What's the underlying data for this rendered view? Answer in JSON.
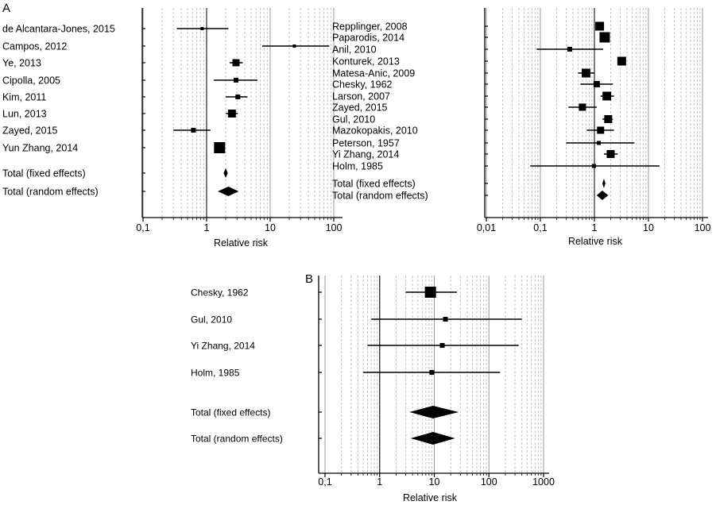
{
  "figure": {
    "panel_a_label": "A",
    "panel_b_label": "B"
  },
  "chart_data": [
    {
      "id": "A-left",
      "type": "forest",
      "panel": "A",
      "xlabel": "Relative risk",
      "xscale": "log",
      "xlim": [
        0.1,
        100
      ],
      "xticks": [
        0.1,
        1,
        10,
        100
      ],
      "xtick_labels": [
        "0,1",
        "1",
        "10",
        "100"
      ],
      "reference_line": 1,
      "grid": true,
      "studies": [
        {
          "label": "de Alcantara-Jones, 2015",
          "rr": 0.85,
          "lo": 0.34,
          "hi": 2.2,
          "weight": 4
        },
        {
          "label": "Campos, 2012",
          "rr": 24,
          "lo": 7.5,
          "hi": 85,
          "weight": 4
        },
        {
          "label": "Ye, 2013",
          "rr": 2.9,
          "lo": 2.3,
          "hi": 3.7,
          "weight": 9
        },
        {
          "label": "Cipolla, 2005",
          "rr": 2.9,
          "lo": 1.3,
          "hi": 6.3,
          "weight": 6
        },
        {
          "label": "Kim, 2011",
          "rr": 3.1,
          "lo": 2.0,
          "hi": 4.4,
          "weight": 6
        },
        {
          "label": "Lun, 2013",
          "rr": 2.5,
          "lo": 2.0,
          "hi": 3.1,
          "weight": 10
        },
        {
          "label": "Zayed, 2015",
          "rr": 0.62,
          "lo": 0.3,
          "hi": 1.15,
          "weight": 6
        },
        {
          "label": "Yun Zhang, 2014",
          "rr": 1.6,
          "lo": 1.4,
          "hi": 1.9,
          "weight": 14
        }
      ],
      "totals": [
        {
          "label": "Total (fixed effects)",
          "rr": 2.0,
          "lo": 1.85,
          "hi": 2.15
        },
        {
          "label": "Total (random effects)",
          "rr": 2.2,
          "lo": 1.5,
          "hi": 3.2
        }
      ]
    },
    {
      "id": "A-right",
      "type": "forest",
      "panel": "A",
      "xlabel": "Relative risk",
      "xscale": "log",
      "xlim": [
        0.01,
        100
      ],
      "xticks": [
        0.01,
        0.1,
        1,
        10,
        100
      ],
      "xtick_labels": [
        "0,01",
        "0,1",
        "1",
        "10",
        "100"
      ],
      "reference_line": 1,
      "grid": true,
      "studies": [
        {
          "label": "Repplinger, 2008",
          "rr": 1.25,
          "lo": 1.1,
          "hi": 1.45,
          "weight": 11
        },
        {
          "label": "Paparodis, 2014",
          "rr": 1.55,
          "lo": 1.35,
          "hi": 1.8,
          "weight": 13
        },
        {
          "label": "Anil, 2010",
          "rr": 0.35,
          "lo": 0.085,
          "hi": 1.45,
          "weight": 6
        },
        {
          "label": "Konturek, 2013",
          "rr": 3.2,
          "lo": 2.7,
          "hi": 3.7,
          "weight": 11
        },
        {
          "label": "Matesa-Anic, 2009",
          "rr": 0.7,
          "lo": 0.5,
          "hi": 1.0,
          "weight": 11
        },
        {
          "label": "Chesky, 1962",
          "rr": 1.1,
          "lo": 0.55,
          "hi": 2.2,
          "weight": 8
        },
        {
          "label": "Larson, 2007",
          "rr": 1.7,
          "lo": 1.3,
          "hi": 2.3,
          "weight": 11
        },
        {
          "label": "Zayed, 2015",
          "rr": 0.6,
          "lo": 0.33,
          "hi": 1.1,
          "weight": 9
        },
        {
          "label": "Gul, 2010",
          "rr": 1.8,
          "lo": 1.4,
          "hi": 2.2,
          "weight": 10
        },
        {
          "label": "Mazokopakis, 2010",
          "rr": 1.3,
          "lo": 0.72,
          "hi": 2.3,
          "weight": 9
        },
        {
          "label": "Peterson, 1957",
          "rr": 1.2,
          "lo": 0.3,
          "hi": 5.5,
          "weight": 5
        },
        {
          "label": "Yi Zhang, 2014",
          "rr": 2.0,
          "lo": 1.5,
          "hi": 2.7,
          "weight": 10
        },
        {
          "label": "Holm, 1985",
          "rr": 0.98,
          "lo": 0.065,
          "hi": 16,
          "weight": 5
        }
      ],
      "totals": [
        {
          "label": "Total (fixed effects)",
          "rr": 1.5,
          "lo": 1.4,
          "hi": 1.6
        },
        {
          "label": "Total (random effects)",
          "rr": 1.4,
          "lo": 1.1,
          "hi": 1.8
        }
      ]
    },
    {
      "id": "B",
      "type": "forest",
      "panel": "B",
      "xlabel": "Relative risk",
      "xscale": "log",
      "xlim": [
        0.1,
        1000
      ],
      "xticks": [
        0.1,
        1,
        10,
        100,
        1000
      ],
      "xtick_labels": [
        "0,1",
        "1",
        "10",
        "100",
        "1000"
      ],
      "reference_line": 1,
      "grid": true,
      "studies": [
        {
          "label": "Chesky, 1962",
          "rr": 8.5,
          "lo": 3.0,
          "hi": 26,
          "weight": 14
        },
        {
          "label": "Gul, 2010",
          "rr": 16,
          "lo": 0.7,
          "hi": 400,
          "weight": 6
        },
        {
          "label": "Yi Zhang, 2014",
          "rr": 14,
          "lo": 0.6,
          "hi": 350,
          "weight": 6
        },
        {
          "label": "Holm, 1985",
          "rr": 9,
          "lo": 0.5,
          "hi": 160,
          "weight": 6
        }
      ],
      "totals": [
        {
          "label": "Total (fixed effects)",
          "rr": 9.5,
          "lo": 3.5,
          "hi": 28
        },
        {
          "label": "Total (random effects)",
          "rr": 9.5,
          "lo": 3.7,
          "hi": 24
        }
      ]
    }
  ]
}
